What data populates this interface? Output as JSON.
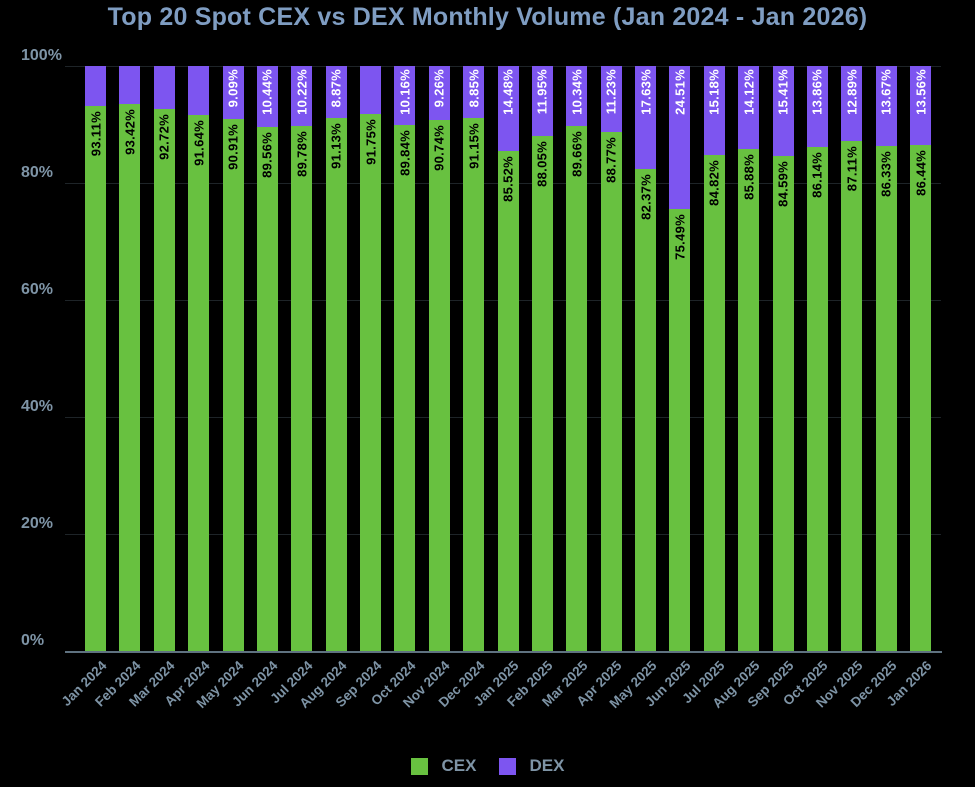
{
  "title": "Top 20 Spot CEX vs DEX Monthly Volume (Jan 2024 - Jan 2026)",
  "colors": {
    "background": "#000000",
    "cex_green": "#68c140",
    "dex_purple": "#7d55f0",
    "title_text": "#7f9dc2",
    "axis_text": "#7e94a6",
    "gridline": "#1e2428",
    "axis_line": "#5f7280",
    "cex_label_text": "#000000",
    "dex_label_text": "#ffffff"
  },
  "y_axis": {
    "tick_labels": [
      "100%",
      "80%",
      "60%",
      "40%",
      "20%",
      "0%"
    ],
    "min": 0,
    "max": 100,
    "step": 20
  },
  "legend": {
    "items": [
      {
        "label": "CEX",
        "color": "#68c140"
      },
      {
        "label": "DEX",
        "color": "#7d55f0"
      }
    ]
  },
  "chart_data": {
    "type": "bar",
    "stacked": true,
    "stack_unit": "percent",
    "title": "Top 20 Spot CEX vs DEX Monthly Volume (Jan 2024 - Jan 2026)",
    "categories": [
      "Jan 2024",
      "Feb 2024",
      "Mar 2024",
      "Apr 2024",
      "May 2024",
      "Jun 2024",
      "Jul 2024",
      "Aug 2024",
      "Sep 2024",
      "Oct 2024",
      "Nov 2024",
      "Dec 2024",
      "Jan 2025",
      "Feb 2025",
      "Mar 2025",
      "Apr 2025",
      "May 2025",
      "Jun 2025",
      "Jul 2025",
      "Aug 2025",
      "Sep 2025",
      "Oct 2025",
      "Nov 2025",
      "Dec 2025",
      "Jan 2026"
    ],
    "series": [
      {
        "name": "CEX",
        "color": "#68c140",
        "values": [
          93.11,
          93.42,
          92.72,
          91.64,
          90.91,
          89.56,
          89.78,
          91.13,
          91.75,
          89.84,
          90.74,
          91.15,
          85.52,
          88.05,
          89.66,
          88.77,
          82.37,
          75.49,
          84.82,
          85.88,
          84.59,
          86.14,
          87.11,
          86.33,
          86.44
        ]
      },
      {
        "name": "DEX",
        "color": "#7d55f0",
        "values": [
          6.89,
          6.58,
          7.28,
          8.36,
          9.09,
          10.44,
          10.22,
          8.87,
          8.25,
          10.16,
          9.26,
          8.85,
          14.48,
          11.95,
          10.34,
          11.23,
          17.63,
          24.51,
          15.18,
          14.12,
          15.41,
          13.86,
          12.89,
          13.67,
          13.56
        ]
      }
    ],
    "bar_labels": {
      "cex": [
        "93.11%",
        "93.42%",
        "92.72%",
        "91.64%",
        "90.91%",
        "89.56%",
        "89.78%",
        "91.13%",
        "91.75%",
        "89.84%",
        "90.74%",
        "91.15%",
        "85.52%",
        "88.05%",
        "89.66%",
        "88.77%",
        "82.37%",
        "75.49%",
        "84.82%",
        "85.88%",
        "84.59%",
        "86.14%",
        "87.11%",
        "86.33%",
        "86.44%"
      ],
      "dex": [
        null,
        null,
        null,
        null,
        "9.09%",
        "10.44%",
        "10.22%",
        "8.87%",
        null,
        "10.16%",
        "9.26%",
        "8.85%",
        "14.48%",
        "11.95%",
        "10.34%",
        "11.23%",
        "17.63%",
        "24.51%",
        "15.18%",
        "14.12%",
        "15.41%",
        "13.86%",
        "12.89%",
        "13.67%",
        "13.56%"
      ]
    },
    "ylim": [
      0,
      100
    ],
    "grid": true,
    "legend_position": "bottom"
  }
}
